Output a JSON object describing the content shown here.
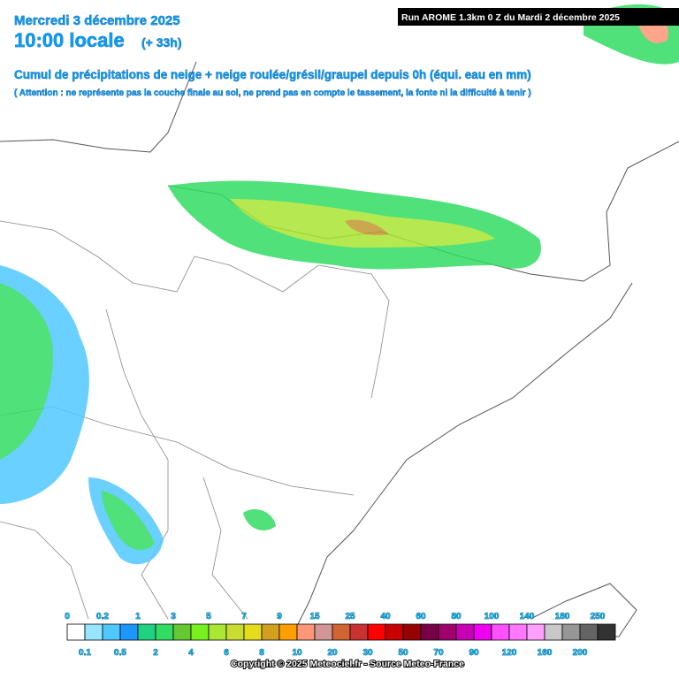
{
  "header": {
    "date": "Mercredi 3 décembre 2025",
    "time": "10:00 locale",
    "offset": "(+ 33h)",
    "run": "Run AROME 1.3km 0 Z du Mardi 2 décembre 2025",
    "title": "Cumul de précipitations de neige + neige roulée/grésil/graupel depuis 0h (équi. eau en mm)",
    "note": "( Attention : ne représente pas la couche finale au sol, ne prend pas en compte le tassement, la fonte ni la difficulté à tenir )"
  },
  "legend": {
    "labels": [
      "0",
      "0.1",
      "0.2",
      "0.5",
      "1",
      "2",
      "3",
      "4",
      "5",
      "6",
      "7",
      "8",
      "9",
      "10",
      "15",
      "20",
      "25",
      "30",
      "40",
      "50",
      "60",
      "70",
      "80",
      "90",
      "100",
      "120",
      "140",
      "160",
      "180",
      "200",
      "250"
    ],
    "colors": [
      "#ffffff",
      "#96e6ff",
      "#50c8ff",
      "#1e96ff",
      "#1ed282",
      "#32dc64",
      "#64c832",
      "#78f01e",
      "#aae632",
      "#c8dc32",
      "#e6dc1e",
      "#d2a01e",
      "#ffa000",
      "#ff9678",
      "#d29696",
      "#d26432",
      "#c83232",
      "#ff0000",
      "#c80000",
      "#960000",
      "#780046",
      "#a0006e",
      "#c800b4",
      "#f000f0",
      "#ff50ff",
      "#ff78ff",
      "#ffa0ff",
      "#c8c8c8",
      "#969696",
      "#646464",
      "#323232"
    ]
  },
  "footer": {
    "copyright": "Copyright © 2025 Meteociel.fr - Source Meteo-France"
  }
}
